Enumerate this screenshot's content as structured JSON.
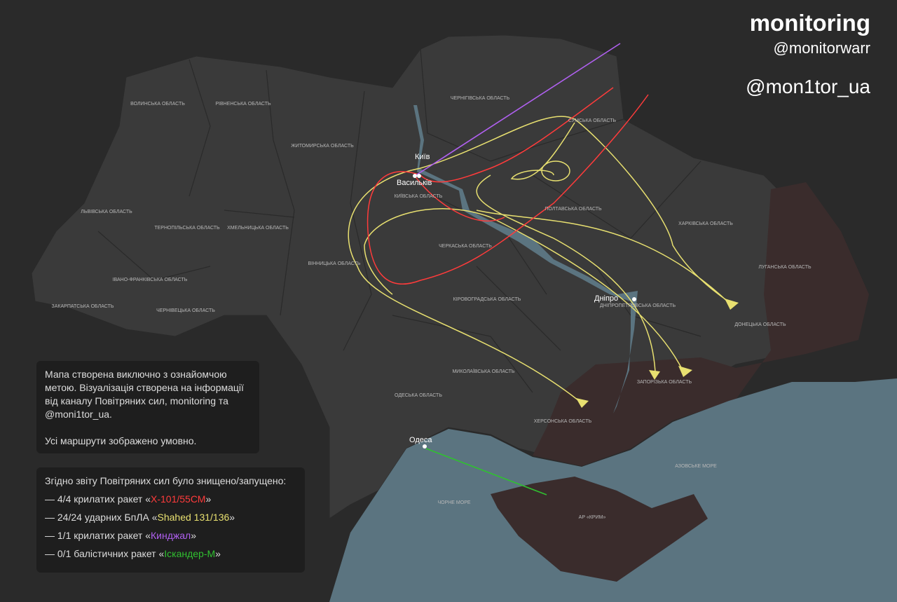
{
  "branding": {
    "title": "monitoring",
    "handle1": "@monitorwarr",
    "handle2": "@mon1tor_ua"
  },
  "regions": [
    {
      "label": "ВОЛИНСЬКА ОБЛАСТЬ"
    },
    {
      "label": "РІВНЕНСЬКА ОБЛАСТЬ"
    },
    {
      "label": "ЖИТОМИРСЬКА ОБЛАСТЬ"
    },
    {
      "label": "ЧЕРНІГІВСЬКА ОБЛАСТЬ"
    },
    {
      "label": "СУМСЬКА ОБЛАСТЬ"
    },
    {
      "label": "ЛЬВІВСЬКА ОБЛАСТЬ"
    },
    {
      "label": "ТЕРНОПІЛЬСЬКА ОБЛАСТЬ"
    },
    {
      "label": "ХМЕЛЬНИЦЬКА ОБЛАСТЬ"
    },
    {
      "label": "КИЇВСЬКА ОБЛАСТЬ"
    },
    {
      "label": "ПОЛТАВСЬКА ОБЛАСТЬ"
    },
    {
      "label": "ХАРКІВСЬКА ОБЛАСТЬ"
    },
    {
      "label": "ЧЕРКАСЬКА ОБЛАСТЬ"
    },
    {
      "label": "ВІННИЦЬКА ОБЛАСТЬ"
    },
    {
      "label": "ІВАНО-ФРАНКІВСЬКА ОБЛАСТЬ"
    },
    {
      "label": "ЛУГАНСЬКА ОБЛАСТЬ"
    },
    {
      "label": "ЗАКАРПАТСЬКА ОБЛАСТЬ"
    },
    {
      "label": "ЧЕРНІВЕЦЬКА ОБЛАСТЬ"
    },
    {
      "label": "КІРОВОГРАДСЬКА ОБЛАСТЬ"
    },
    {
      "label": "ДНІПРОПЕТРОВСЬКА ОБЛАСТЬ"
    },
    {
      "label": "ДОНЕЦЬКА ОБЛАСТЬ"
    },
    {
      "label": "МИКОЛАЇВСЬКА ОБЛАСТЬ"
    },
    {
      "label": "ЗАПОРІЗЬКА ОБЛАСТЬ"
    },
    {
      "label": "ОДЕСЬКА ОБЛАСТЬ"
    },
    {
      "label": "ХЕРСОНСЬКА ОБЛАСТЬ"
    },
    {
      "label": "ЧОРНЕ МОРЕ"
    },
    {
      "label": "АЗОВСЬКЕ МОРЕ"
    },
    {
      "label": "АР «КРИМ»"
    }
  ],
  "cities": [
    {
      "label": "Київ"
    },
    {
      "label": "Васильків"
    },
    {
      "label": "Дніпро"
    },
    {
      "label": "Одеса"
    }
  ],
  "note": {
    "paragraphs": [
      "Мапа створена виключно з ознайомчою метою. Візуалізація створена на інформації від каналу Повітряних сил, monitoring та @moni1tor_ua.",
      "Усі маршрути зображено умовно."
    ]
  },
  "summary": {
    "heading": "Згідно звіту Повітряних сил було знищено/запущено:",
    "items": [
      {
        "prefix": "— 4/4 крилатих ракет «",
        "weapon": "Х-101/55СМ",
        "suffix": "»",
        "color": "#ff3b3b"
      },
      {
        "prefix": "— 24/24 ударних БпЛА «",
        "weapon": "Shahed 131/136",
        "suffix": "»",
        "color": "#e8e070"
      },
      {
        "prefix": "— 1/1 крилатих ракет «",
        "weapon": "Кинджал",
        "suffix": "»",
        "color": "#b060f0"
      },
      {
        "prefix": "— 0/1 балістичних ракет «",
        "weapon": "Іскандер-М",
        "suffix": "»",
        "color": "#30c030"
      }
    ]
  }
}
